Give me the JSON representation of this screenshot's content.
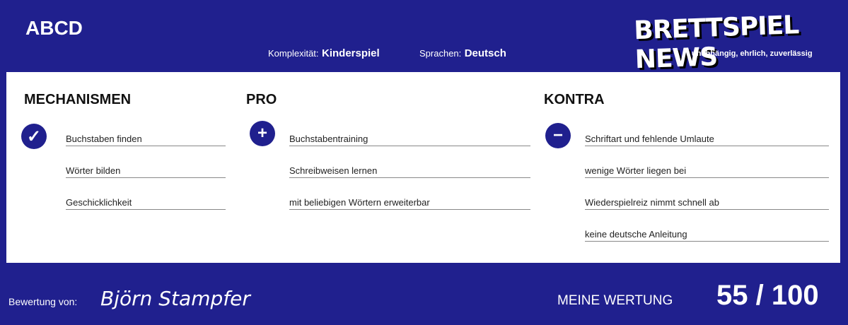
{
  "title": "ABCD",
  "meta": {
    "complexity_label": "Komplexität:",
    "complexity_value": "Kinderspiel",
    "language_label": "Sprachen:",
    "language_value": "Deutsch"
  },
  "logo": {
    "text": "BRETTSPIEL NEWS",
    "tagline": "unabhängig, ehrlich, zuverlässig"
  },
  "columns": {
    "mechanisms": {
      "heading": "MECHANISMEN",
      "icon": "check-icon",
      "items": [
        "Buchstaben finden",
        "Wörter bilden",
        "Geschicklichkeit"
      ]
    },
    "pro": {
      "heading": "PRO",
      "icon": "plus-icon",
      "items": [
        "Buchstabentraining",
        "Schreibweisen lernen",
        "mit beliebigen Wörtern erweiterbar"
      ]
    },
    "contra": {
      "heading": "KONTRA",
      "icon": "minus-icon",
      "items": [
        "Schriftart und fehlende Umlaute",
        "wenige Wörter liegen bei",
        "Wiederspielreiz nimmt schnell ab",
        "keine deutsche Anleitung"
      ]
    }
  },
  "footer": {
    "review_by_label": "Bewertung von:",
    "author": "Björn Stampfer",
    "rating_label": "MEINE WERTUNG",
    "score": "55 / 100"
  },
  "colors": {
    "brand": "#20208e"
  }
}
